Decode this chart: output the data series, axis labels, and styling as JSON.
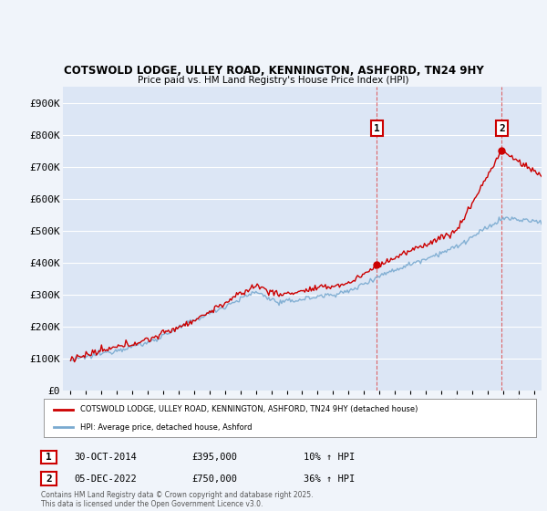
{
  "title1": "COTSWOLD LODGE, ULLEY ROAD, KENNINGTON, ASHFORD, TN24 9HY",
  "title2": "Price paid vs. HM Land Registry's House Price Index (HPI)",
  "ylabel_ticks": [
    "£0",
    "£100K",
    "£200K",
    "£300K",
    "£400K",
    "£500K",
    "£600K",
    "£700K",
    "£800K",
    "£900K"
  ],
  "ytick_vals": [
    0,
    100000,
    200000,
    300000,
    400000,
    500000,
    600000,
    700000,
    800000,
    900000
  ],
  "ylim": [
    0,
    950000
  ],
  "xlim_start": 1994.5,
  "xlim_end": 2025.5,
  "background_color": "#f0f4fa",
  "plot_bg_color": "#dce6f5",
  "grid_color": "#ffffff",
  "red_line_color": "#cc0000",
  "blue_line_color": "#7aaad0",
  "vline_color": "#dd4444",
  "sale1_x": 2014.83,
  "sale1_label": "1",
  "sale1_date": "30-OCT-2014",
  "sale1_price": "£395,000",
  "sale1_hpi": "10% ↑ HPI",
  "sale1_price_val": 395000,
  "sale2_x": 2022.92,
  "sale2_label": "2",
  "sale2_date": "05-DEC-2022",
  "sale2_price": "£750,000",
  "sale2_hpi": "36% ↑ HPI",
  "sale2_price_val": 750000,
  "legend_line1": "COTSWOLD LODGE, ULLEY ROAD, KENNINGTON, ASHFORD, TN24 9HY (detached house)",
  "legend_line2": "HPI: Average price, detached house, Ashford",
  "footnote": "Contains HM Land Registry data © Crown copyright and database right 2025.\nThis data is licensed under the Open Government Licence v3.0.",
  "xtick_years": [
    1995,
    1996,
    1997,
    1998,
    1999,
    2000,
    2001,
    2002,
    2003,
    2004,
    2005,
    2006,
    2007,
    2008,
    2009,
    2010,
    2011,
    2012,
    2013,
    2014,
    2015,
    2016,
    2017,
    2018,
    2019,
    2020,
    2021,
    2022,
    2023,
    2024,
    2025
  ]
}
